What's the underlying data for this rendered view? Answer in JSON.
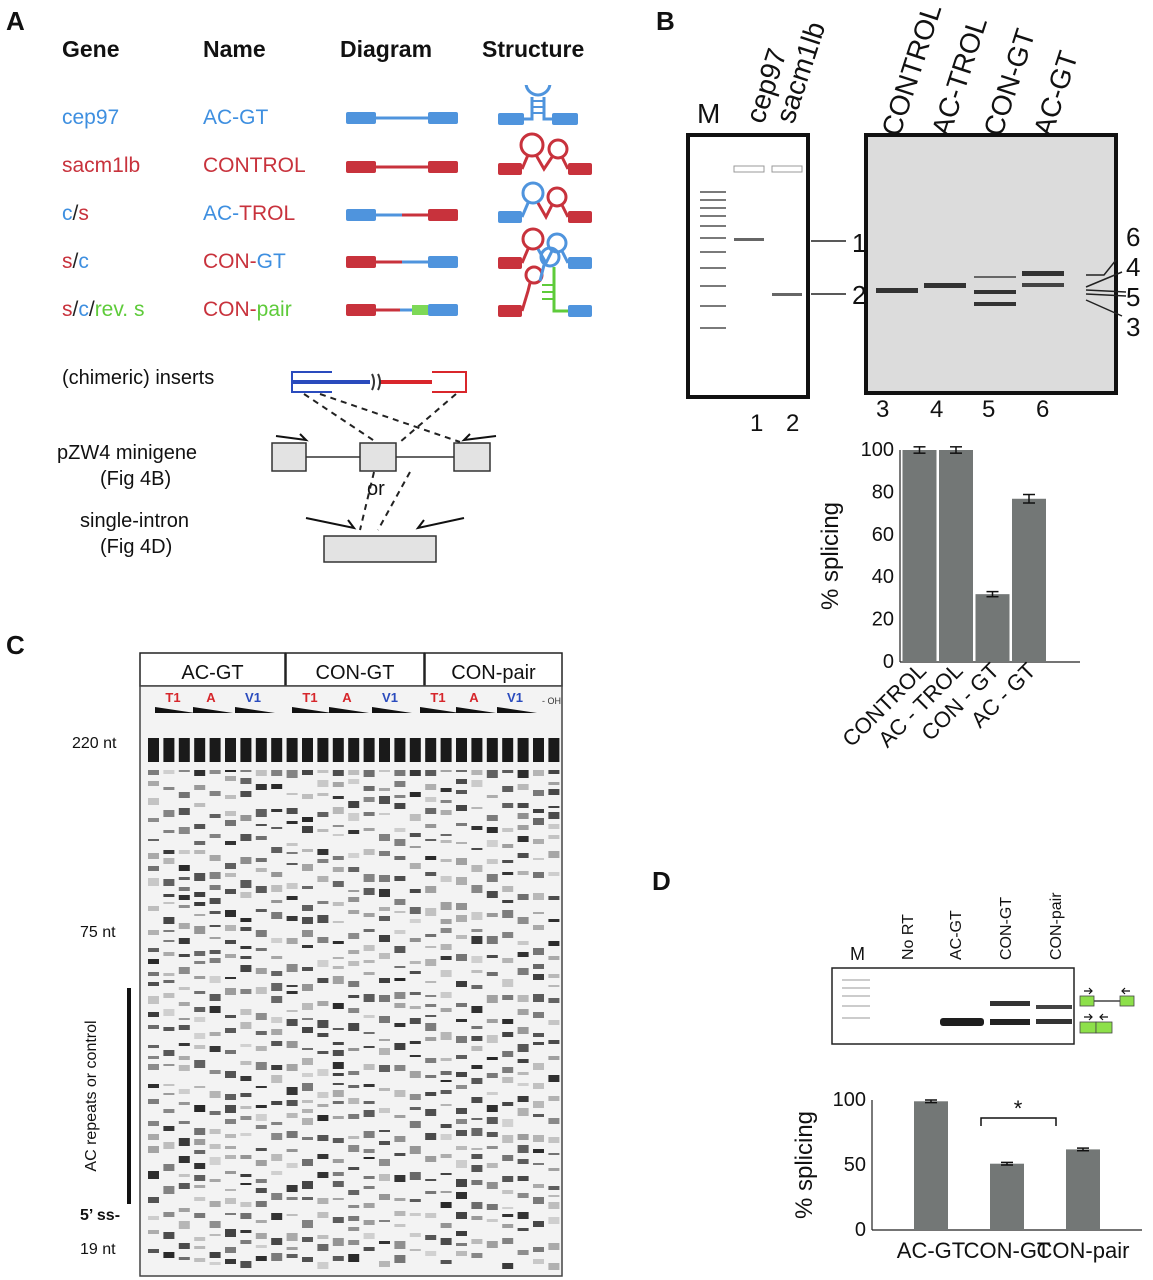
{
  "panel_a": {
    "label": "A",
    "headers": {
      "gene": "Gene",
      "name": "Name",
      "diagram": "Diagram",
      "structure": "Structure"
    },
    "rows": [
      {
        "gene_parts": [
          {
            "t": "cep97",
            "c": "blue"
          }
        ],
        "name_parts": [
          {
            "t": "AC-GT",
            "c": "blue"
          }
        ]
      },
      {
        "gene_parts": [
          {
            "t": "sacm1lb",
            "c": "red"
          }
        ],
        "name_parts": [
          {
            "t": "CONTROL",
            "c": "red"
          }
        ]
      },
      {
        "gene_parts": [
          {
            "t": "c",
            "c": "blue"
          },
          {
            "t": "/",
            "c": "black"
          },
          {
            "t": "s",
            "c": "red"
          }
        ],
        "name_parts": [
          {
            "t": "AC-",
            "c": "blue"
          },
          {
            "t": "TROL",
            "c": "red"
          }
        ]
      },
      {
        "gene_parts": [
          {
            "t": "s",
            "c": "red"
          },
          {
            "t": "/",
            "c": "black"
          },
          {
            "t": "c",
            "c": "blue"
          }
        ],
        "name_parts": [
          {
            "t": "CON-",
            "c": "red"
          },
          {
            "t": "GT",
            "c": "blue"
          }
        ]
      },
      {
        "gene_parts": [
          {
            "t": "s",
            "c": "red"
          },
          {
            "t": "/",
            "c": "black"
          },
          {
            "t": "c",
            "c": "blue"
          },
          {
            "t": "/",
            "c": "black"
          },
          {
            "t": "rev. s",
            "c": "green"
          }
        ],
        "name_parts": [
          {
            "t": "CON-",
            "c": "red"
          },
          {
            "t": "pair",
            "c": "green"
          }
        ]
      }
    ],
    "inserts_label": "(chimeric) inserts",
    "minigene_label": "pZW4 minigene",
    "minigene_ref": "(Fig 4B)",
    "or_label": "or",
    "single_intron_label": "single-intron",
    "single_intron_ref": "(Fig 4D)"
  },
  "panel_b": {
    "label": "B",
    "marker": "M",
    "gel1_lanes": [
      "cep97",
      "sacm1lb"
    ],
    "gel1_numbers": [
      "1",
      "2"
    ],
    "gel1_arrows": [
      "1",
      "2"
    ],
    "gel2_lanes": [
      "CONTROL",
      "AC-TROL",
      "CON-GT",
      "AC-GT"
    ],
    "gel2_numbers": [
      "3",
      "4",
      "5",
      "6"
    ],
    "band_labels": [
      "6",
      "4",
      "5",
      "3"
    ]
  },
  "panel_c": {
    "label": "C",
    "groups": [
      "AC-GT",
      "CON-GT",
      "CON-pair"
    ],
    "lane_markers": [
      "T1",
      "A",
      "V1",
      "T1",
      "A",
      "V1",
      "T1",
      "A",
      "V1"
    ],
    "oh_label": "- OH",
    "size_220": "220 nt",
    "size_75": "75 nt",
    "size_19": "19 nt",
    "ss_label": "5’ ss-",
    "region_label": "AC repeats or control"
  },
  "panel_d": {
    "label": "D",
    "lanes": [
      "M",
      "No RT",
      "AC-GT",
      "CON-GT",
      "CON-pair"
    ],
    "sig": "*"
  },
  "chart_data": [
    {
      "type": "bar",
      "ylabel": "% splicing",
      "categories": [
        "CONTROL",
        "AC - TROL",
        "CON - GT",
        "AC - GT"
      ],
      "values": [
        100,
        100,
        32,
        77
      ],
      "errors": [
        1.5,
        1.5,
        1.2,
        2
      ],
      "ylim": [
        0,
        100
      ],
      "yticks": [
        0,
        20,
        40,
        60,
        80,
        100
      ],
      "color": "#737776"
    },
    {
      "type": "bar",
      "ylabel": "% splicing",
      "categories": [
        "AC-GT",
        "CON-GT",
        "CON-pair"
      ],
      "values": [
        99,
        51,
        62
      ],
      "errors": [
        1,
        1,
        1
      ],
      "ylim": [
        0,
        100
      ],
      "yticks": [
        0,
        50,
        100
      ],
      "color": "#737776"
    }
  ]
}
